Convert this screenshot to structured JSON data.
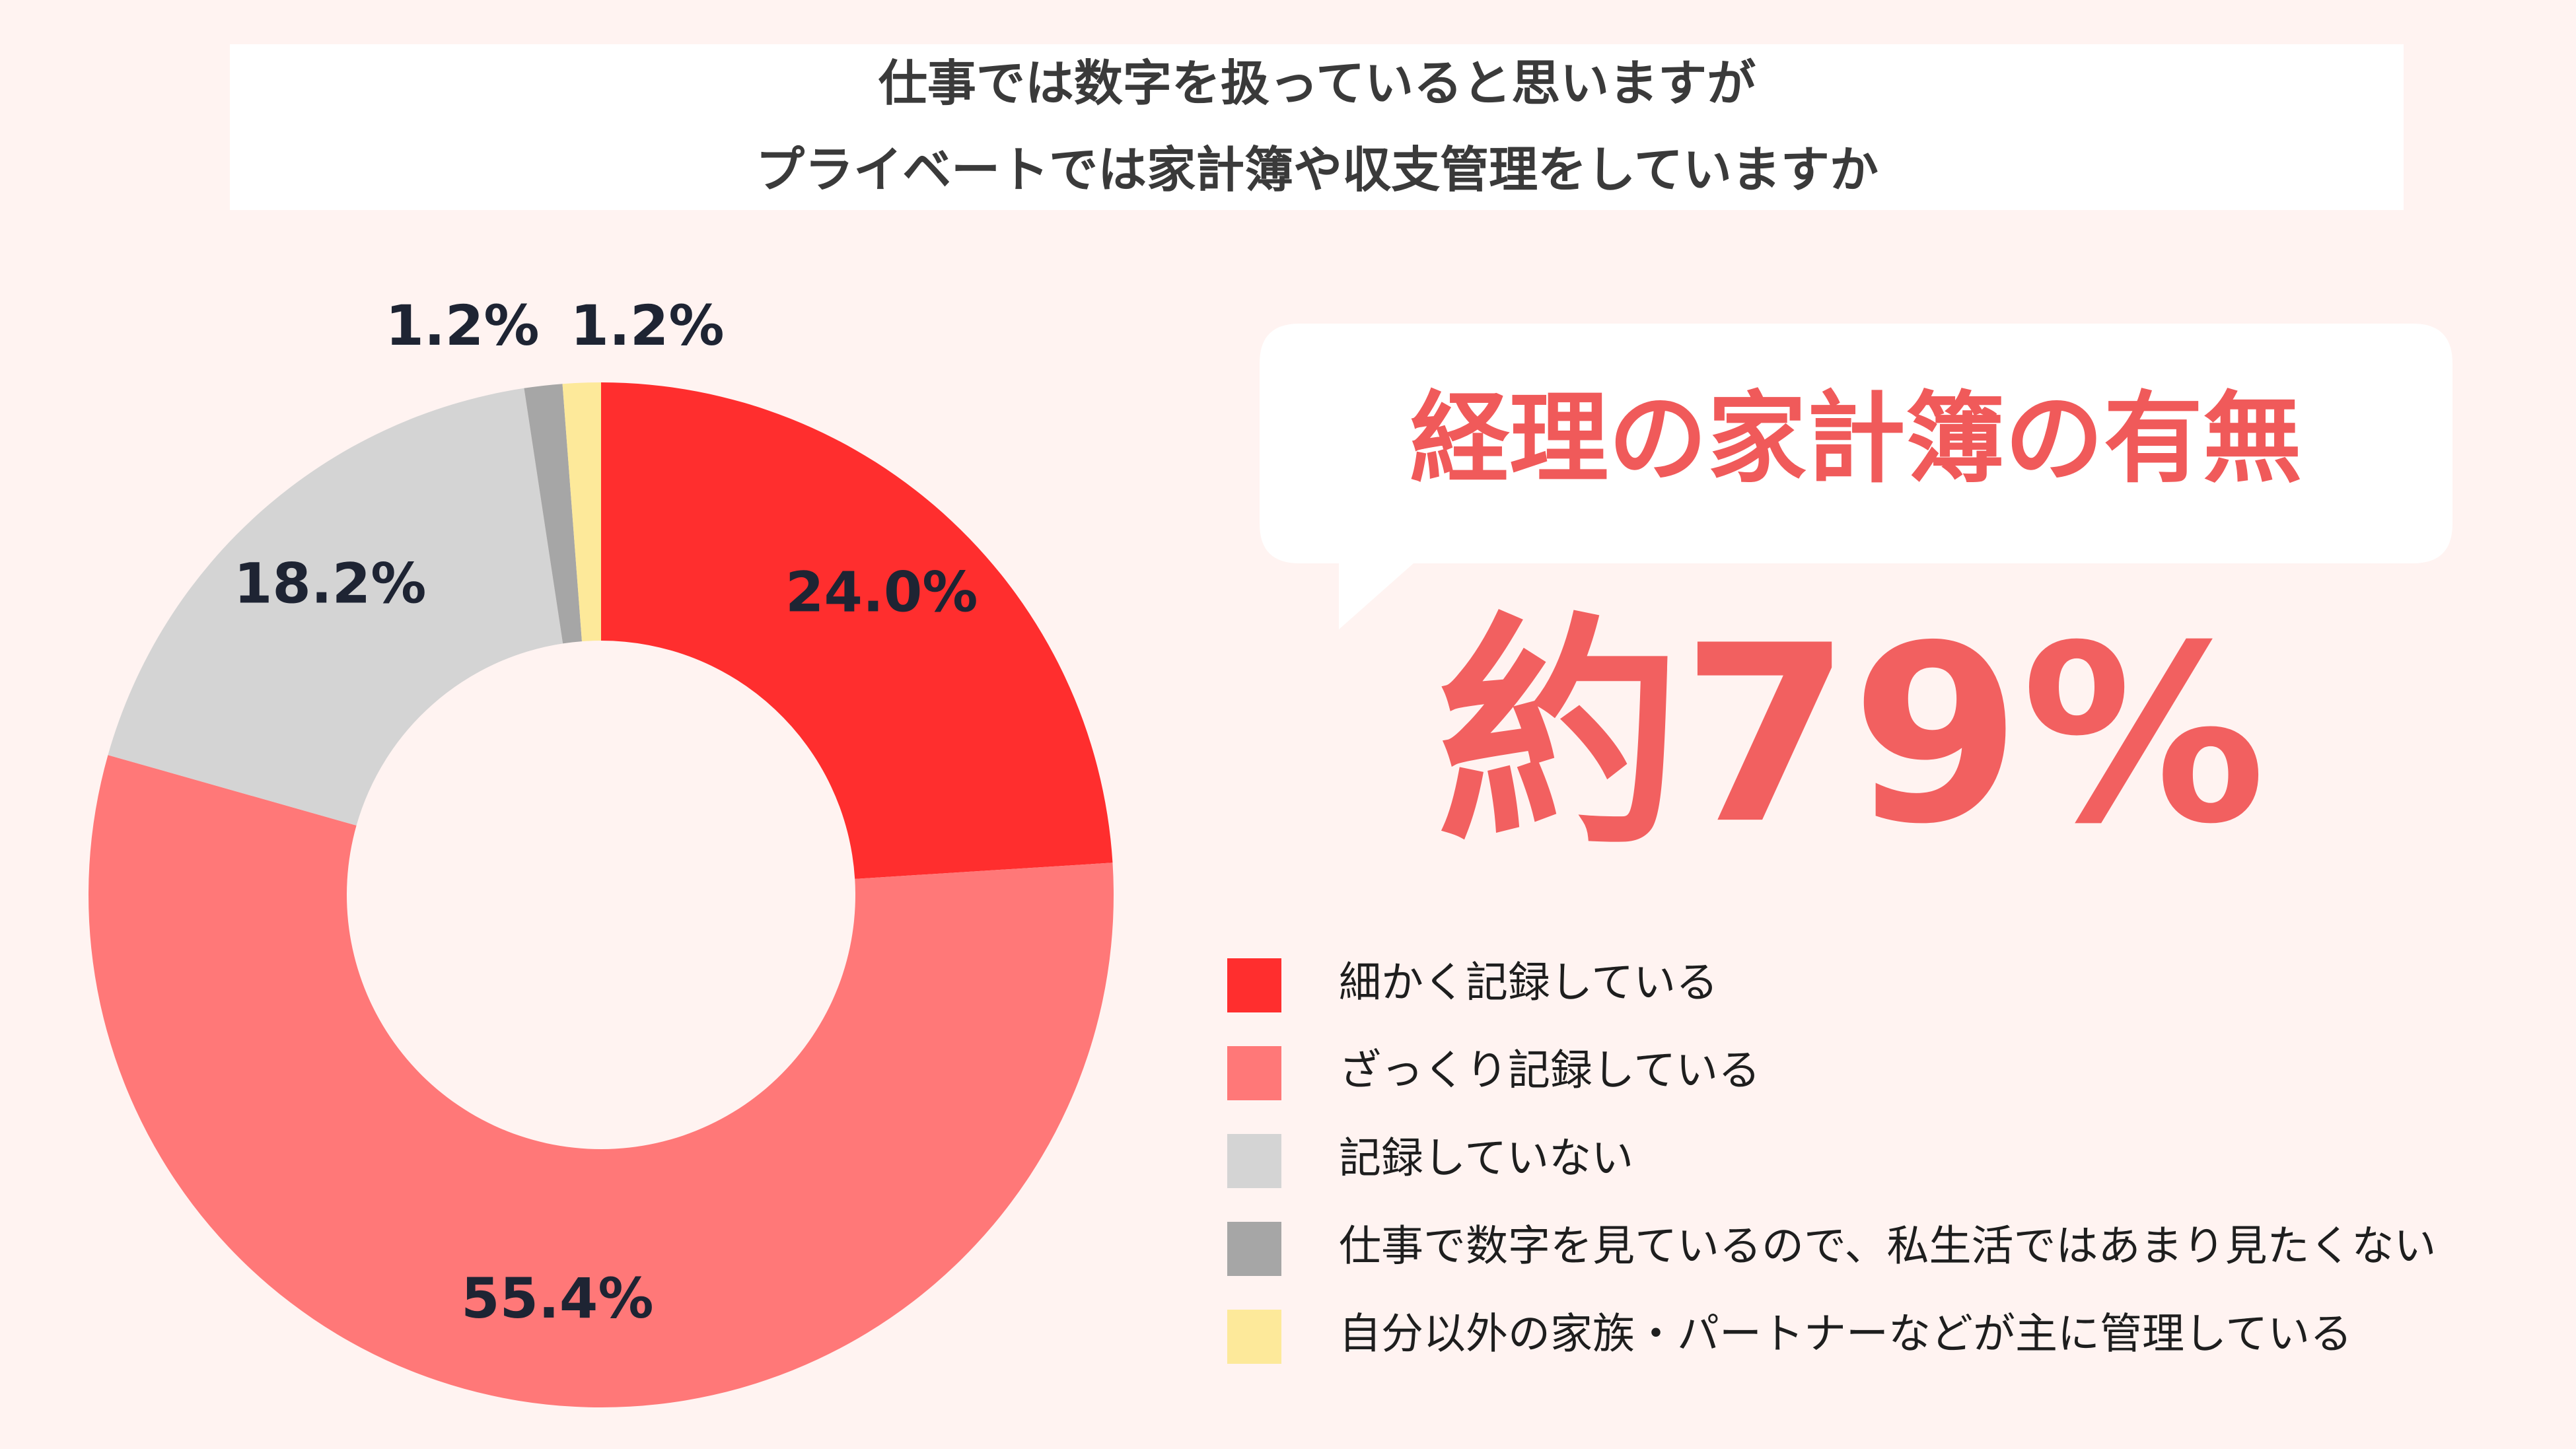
{
  "chart_data": {
    "type": "donut",
    "title": [
      "仕事では数字を扱っていると思いますが",
      "プライベートでは家計簿や収支管理をしていますか"
    ],
    "callout": "経理の家計簿の有無",
    "headline": "約79%",
    "categories": [
      "細かく記録している",
      "ざっくり記録している",
      "記録していない",
      "仕事で数字を見ているので、私生活ではあまり見たくない",
      "自分以外の家族・パートナーなどが主に管理している"
    ],
    "values": [
      24.0,
      55.4,
      18.2,
      1.2,
      1.2
    ],
    "value_labels": [
      "24.0%",
      "55.4%",
      "18.2%",
      "1.2%",
      "1.2%"
    ],
    "colors": [
      "#ff2e2e",
      "#ff7878",
      "#d4d4d4",
      "#a6a6a6",
      "#fde99a"
    ]
  }
}
